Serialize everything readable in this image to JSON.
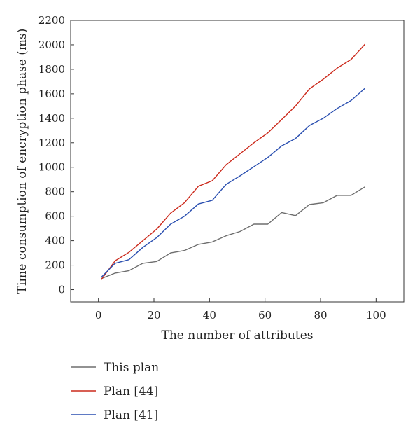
{
  "chart_data": {
    "type": "line",
    "xlabel": "The number of attributes",
    "ylabel": "Time consumption of encryption phase (ms)",
    "xlim": [
      -10,
      110
    ],
    "ylim": [
      -100,
      2200
    ],
    "xticks": [
      0,
      20,
      40,
      60,
      80,
      100
    ],
    "yticks": [
      0,
      200,
      400,
      600,
      800,
      1000,
      1200,
      1400,
      1600,
      1800,
      2000,
      2200
    ],
    "grid": false,
    "legend_position": "bottom",
    "series": [
      {
        "name": "This plan",
        "color": "#6e6e6e",
        "x": [
          1,
          6,
          11,
          16,
          21,
          26,
          31,
          36,
          41,
          46,
          51,
          56,
          61,
          66,
          71,
          76,
          81,
          86,
          91,
          96
        ],
        "y": [
          90,
          135,
          155,
          215,
          230,
          300,
          320,
          370,
          390,
          440,
          475,
          535,
          535,
          630,
          605,
          695,
          710,
          770,
          770,
          840
        ]
      },
      {
        "name": "Plan [44]",
        "color": "#cc2a1c",
        "x": [
          1,
          6,
          11,
          16,
          21,
          26,
          31,
          36,
          41,
          46,
          51,
          56,
          61,
          66,
          71,
          76,
          81,
          86,
          91,
          96
        ],
        "y": [
          80,
          235,
          305,
          400,
          495,
          625,
          710,
          845,
          890,
          1020,
          1110,
          1200,
          1280,
          1390,
          1500,
          1640,
          1720,
          1810,
          1880,
          2005
        ]
      },
      {
        "name": "Plan [41]",
        "color": "#2a4fb0",
        "x": [
          1,
          6,
          11,
          16,
          21,
          26,
          31,
          36,
          41,
          46,
          51,
          56,
          61,
          66,
          71,
          76,
          81,
          86,
          91,
          96
        ],
        "y": [
          100,
          215,
          245,
          345,
          425,
          535,
          600,
          700,
          730,
          860,
          930,
          1005,
          1080,
          1175,
          1235,
          1340,
          1400,
          1480,
          1545,
          1645
        ]
      }
    ]
  }
}
